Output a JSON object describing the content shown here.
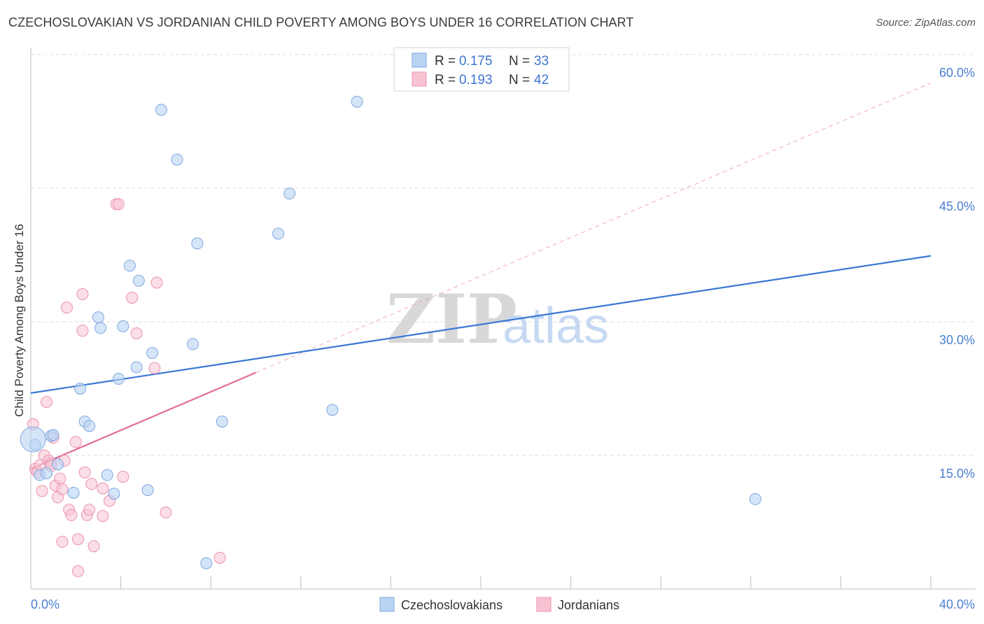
{
  "title": "CZECHOSLOVAKIAN VS JORDANIAN CHILD POVERTY AMONG BOYS UNDER 16 CORRELATION CHART",
  "source": "Source: ZipAtlas.com",
  "watermark": {
    "zip": "ZIP",
    "atlas": "atlas"
  },
  "colors": {
    "blue_fill": "#b9d3f3",
    "blue_stroke": "#7ea8df",
    "blue_line": "#3a78d4",
    "pink_fill": "#f7c3d3",
    "pink_stroke": "#ec93ad",
    "pink_line": "#e36b97",
    "grid": "#dcdcdc",
    "tick_label": "#4a7fd0"
  },
  "legend": {
    "rows": [
      {
        "r_label": "R = ",
        "r_value": "0.175",
        "n_label": "N = ",
        "n_value": "33"
      },
      {
        "r_label": "R = ",
        "r_value": "0.193",
        "n_label": "N = ",
        "n_value": "42"
      }
    ]
  },
  "bottom_legend": [
    "Czechoslovakians",
    "Jordanians"
  ],
  "chart_data": {
    "type": "scatter",
    "title": "CZECHOSLOVAKIAN VS JORDANIAN CHILD POVERTY AMONG BOYS UNDER 16 CORRELATION CHART",
    "xlabel": "",
    "ylabel": "Child Poverty Among Boys Under 16",
    "xlim": [
      0,
      40
    ],
    "ylim": [
      0,
      60
    ],
    "x_tick_labels": [
      "0.0%",
      "40.0%"
    ],
    "y_ticks": [
      15,
      30,
      45,
      60
    ],
    "y_tick_labels": [
      "15.0%",
      "30.0%",
      "45.0%",
      "60.0%"
    ],
    "grid": true,
    "series": [
      {
        "name": "Czechoslovakians",
        "points": [
          [
            0.2,
            16.2
          ],
          [
            0.4,
            12.8
          ],
          [
            0.7,
            13.0
          ],
          [
            0.9,
            17.2
          ],
          [
            1.0,
            17.3
          ],
          [
            1.2,
            14.0
          ],
          [
            1.9,
            10.8
          ],
          [
            2.2,
            22.5
          ],
          [
            2.4,
            18.8
          ],
          [
            2.6,
            18.3
          ],
          [
            3.0,
            30.5
          ],
          [
            3.1,
            29.3
          ],
          [
            3.4,
            12.8
          ],
          [
            3.7,
            10.7
          ],
          [
            3.9,
            23.6
          ],
          [
            4.1,
            29.5
          ],
          [
            4.4,
            36.3
          ],
          [
            4.7,
            24.9
          ],
          [
            4.8,
            34.6
          ],
          [
            5.2,
            11.1
          ],
          [
            5.4,
            26.5
          ],
          [
            5.8,
            53.8
          ],
          [
            6.5,
            48.2
          ],
          [
            7.2,
            27.5
          ],
          [
            7.4,
            38.8
          ],
          [
            7.8,
            2.9
          ],
          [
            8.5,
            18.8
          ],
          [
            11.0,
            39.9
          ],
          [
            11.5,
            44.4
          ],
          [
            13.4,
            20.1
          ],
          [
            14.5,
            54.7
          ],
          [
            32.2,
            10.1
          ],
          [
            0.1,
            16.8
          ]
        ],
        "trend": {
          "x": [
            0,
            40
          ],
          "y": [
            22.0,
            37.4
          ]
        }
      },
      {
        "name": "Jordanians",
        "points": [
          [
            0.1,
            18.5
          ],
          [
            0.2,
            13.5
          ],
          [
            0.3,
            13.1
          ],
          [
            0.4,
            13.9
          ],
          [
            0.5,
            11.0
          ],
          [
            0.6,
            15.0
          ],
          [
            0.7,
            21.0
          ],
          [
            0.8,
            14.4
          ],
          [
            0.9,
            14.1
          ],
          [
            1.0,
            17.0
          ],
          [
            1.1,
            11.6
          ],
          [
            1.2,
            10.3
          ],
          [
            1.3,
            12.4
          ],
          [
            1.4,
            11.2
          ],
          [
            1.4,
            5.3
          ],
          [
            1.5,
            14.4
          ],
          [
            1.6,
            31.6
          ],
          [
            1.7,
            8.9
          ],
          [
            1.8,
            8.3
          ],
          [
            2.0,
            16.5
          ],
          [
            2.1,
            2.0
          ],
          [
            2.1,
            5.6
          ],
          [
            2.3,
            33.1
          ],
          [
            2.3,
            29.0
          ],
          [
            2.4,
            13.1
          ],
          [
            2.5,
            8.3
          ],
          [
            2.6,
            8.9
          ],
          [
            2.7,
            11.8
          ],
          [
            2.8,
            4.8
          ],
          [
            3.2,
            11.3
          ],
          [
            3.2,
            8.2
          ],
          [
            3.5,
            9.9
          ],
          [
            3.8,
            43.2
          ],
          [
            3.9,
            43.2
          ],
          [
            4.1,
            12.6
          ],
          [
            4.5,
            32.7
          ],
          [
            4.7,
            28.7
          ],
          [
            5.5,
            24.8
          ],
          [
            5.6,
            34.4
          ],
          [
            6.0,
            8.6
          ],
          [
            8.4,
            3.5
          ],
          [
            0.9,
            13.8
          ]
        ],
        "trend_solid": {
          "x": [
            0,
            10
          ],
          "y": [
            13.5,
            24.3
          ]
        },
        "trend_dashed": {
          "x": [
            10,
            40
          ],
          "y": [
            24.3,
            56.8
          ]
        }
      }
    ]
  }
}
